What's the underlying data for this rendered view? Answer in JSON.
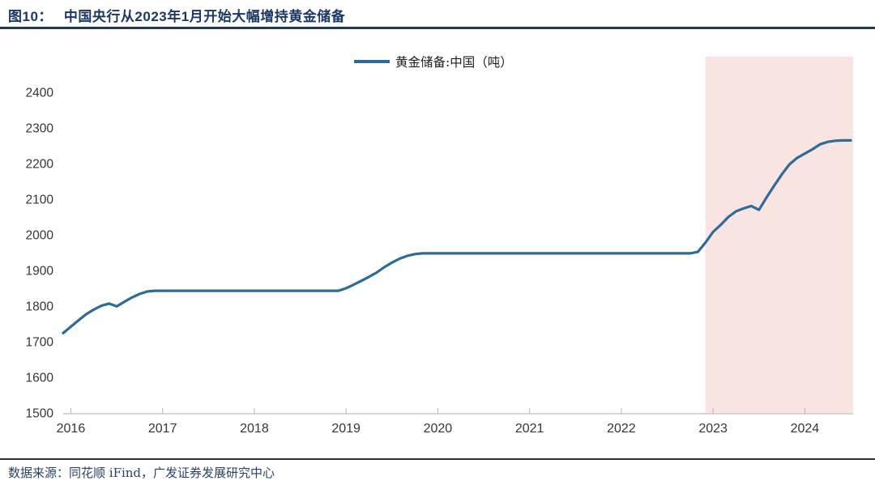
{
  "header": {
    "figure_label": "图10：",
    "title": "中国央行从2023年1月开始大幅增持黄金储备"
  },
  "legend": {
    "label": "黄金储备:中国（吨）"
  },
  "footer": {
    "source": "数据来源：同花顺 iFind，广发证券发展研究中心"
  },
  "colors": {
    "line": "#2b6c9b",
    "highlight": "#f8e4e1",
    "navy": "#1c3866",
    "axis_line": "#c9c9c9",
    "tick_mark": "#b5b5b5",
    "axis_text": "#363636"
  },
  "chart_data": {
    "type": "line",
    "title": "中国央行从2023年1月开始大幅增持黄金储备",
    "series_name": "黄金储备:中国（吨）",
    "unit": "吨",
    "x_start_month": "2015-12",
    "x_end_month": "2024-06",
    "x_ticks": [
      "2016",
      "2017",
      "2018",
      "2019",
      "2020",
      "2021",
      "2022",
      "2023",
      "2024"
    ],
    "y_ticks": [
      1500,
      1600,
      1700,
      1800,
      1900,
      2000,
      2100,
      2200,
      2300,
      2400
    ],
    "ylim": [
      1500,
      2500
    ],
    "grid": false,
    "legend_position": "top-center",
    "highlight_span": {
      "from": "2022-12",
      "to": "2024-06"
    },
    "values": [
      1724,
      1742,
      1760,
      1777,
      1790,
      1801,
      1807,
      1799,
      1812,
      1824,
      1834,
      1841,
      1843,
      1843,
      1843,
      1843,
      1843,
      1843,
      1843,
      1843,
      1843,
      1843,
      1843,
      1843,
      1843,
      1843,
      1843,
      1843,
      1843,
      1843,
      1843,
      1843,
      1843,
      1843,
      1843,
      1843,
      1843,
      1850,
      1860,
      1871,
      1882,
      1894,
      1909,
      1922,
      1933,
      1941,
      1946,
      1948,
      1948,
      1948,
      1948,
      1948,
      1948,
      1948,
      1948,
      1948,
      1948,
      1948,
      1948,
      1948,
      1948,
      1948,
      1948,
      1948,
      1948,
      1948,
      1948,
      1948,
      1948,
      1948,
      1948,
      1948,
      1948,
      1948,
      1948,
      1948,
      1948,
      1948,
      1948,
      1948,
      1948,
      1948,
      1948,
      1952,
      1978,
      2008,
      2028,
      2050,
      2066,
      2074,
      2081,
      2070,
      2105,
      2138,
      2170,
      2198,
      2216,
      2228,
      2240,
      2254,
      2261,
      2264,
      2265,
      2265
    ]
  }
}
